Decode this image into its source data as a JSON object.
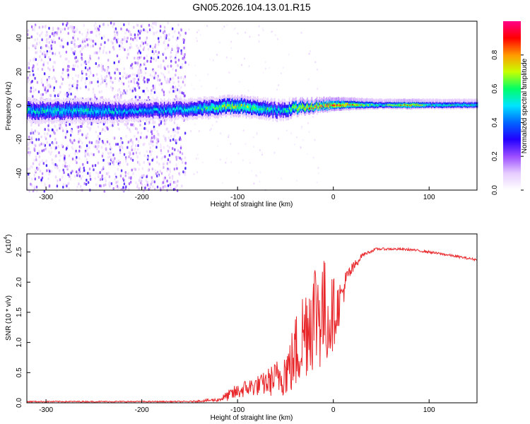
{
  "chart_data": [
    {
      "type": "heatmap",
      "title": "GN05.2026.104.13.01.R15",
      "xlabel": "Height of straight line (km)",
      "ylabel": "Frequency (Hz)",
      "xlim": [
        -320,
        150
      ],
      "ylim": [
        -50,
        50
      ],
      "xticks": [
        -300,
        -200,
        -100,
        0,
        100
      ],
      "yticks": [
        -40,
        -20,
        0,
        20,
        40
      ],
      "colorbar": {
        "label": "Normalized spectral amplitude",
        "range": [
          0.0,
          1.0
        ],
        "ticks": [
          0.0,
          0.2,
          0.4,
          0.6,
          0.8
        ],
        "colors": [
          "#ffffff",
          "#e6ccff",
          "#9b4dff",
          "#2200ff",
          "#0066ff",
          "#00e5ff",
          "#00ff66",
          "#c8ff00",
          "#ff9900",
          "#ff0000",
          "#ff0088"
        ]
      },
      "signal_band": {
        "description_points_x": [
          -320,
          -250,
          -200,
          -150,
          -100,
          -70,
          -55,
          -40,
          -20,
          0,
          50,
          80,
          100,
          150
        ],
        "center_freq_hz": [
          -3,
          -3,
          -3,
          -2,
          0,
          -2,
          -3,
          -1,
          0,
          1,
          1,
          1,
          1,
          1
        ],
        "half_width_hz": [
          6,
          6,
          5,
          5,
          5,
          5,
          5,
          4,
          3,
          3,
          2,
          2,
          2,
          2
        ],
        "peak_amplitude": [
          0.55,
          0.55,
          0.5,
          0.55,
          0.75,
          0.6,
          0.5,
          0.8,
          0.9,
          0.95,
          0.6,
          0.9,
          0.6,
          0.6
        ]
      },
      "noise_region_x": [
        -320,
        -155
      ]
    },
    {
      "type": "line",
      "xlabel": "Height of straight line (km)",
      "ylabel": "SNR (10 * v/v)",
      "multiplier": "(x10",
      "multiplier_exp": "4",
      "xlim": [
        -320,
        150
      ],
      "ylim": [
        0,
        2.8
      ],
      "xticks": [
        -300,
        -200,
        -100,
        0,
        100
      ],
      "yticks": [
        0.0,
        0.5,
        1.0,
        1.5,
        2.0,
        2.5
      ],
      "ytick_labels": [
        "0.0",
        "0.5",
        "1.0",
        "1.5",
        "2.0",
        "2.5"
      ],
      "color": "#e8272b",
      "series": [
        {
          "name": "SNR",
          "x": [
            -320,
            -250,
            -200,
            -150,
            -120,
            -105,
            -90,
            -75,
            -60,
            -45,
            -35,
            -25,
            -15,
            -5,
            5,
            15,
            30,
            45,
            60,
            80,
            100,
            120,
            150
          ],
          "y": [
            0.02,
            0.02,
            0.02,
            0.02,
            0.05,
            0.15,
            0.25,
            0.3,
            0.4,
            0.6,
            1.0,
            1.4,
            1.6,
            1.4,
            1.6,
            2.1,
            2.45,
            2.55,
            2.55,
            2.54,
            2.5,
            2.45,
            2.37
          ],
          "noise_amp": [
            0.01,
            0.01,
            0.01,
            0.01,
            0.03,
            0.12,
            0.15,
            0.18,
            0.3,
            0.5,
            0.8,
            0.9,
            1.1,
            0.8,
            0.4,
            0.15,
            0.03,
            0.02,
            0.02,
            0.02,
            0.02,
            0.02,
            0.02
          ]
        }
      ]
    }
  ]
}
